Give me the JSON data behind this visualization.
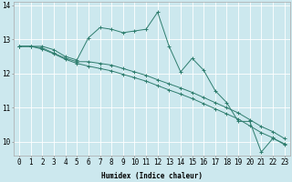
{
  "xlabel": "Humidex (Indice chaleur)",
  "bg_color": "#cce8ee",
  "grid_color": "#ffffff",
  "line_color": "#2e7d6e",
  "marker": "+",
  "xlim": [
    -0.5,
    23.5
  ],
  "ylim": [
    9.6,
    14.1
  ],
  "yticks": [
    10,
    11,
    12,
    13,
    14
  ],
  "xticks": [
    0,
    1,
    2,
    3,
    4,
    5,
    6,
    7,
    8,
    9,
    10,
    11,
    12,
    13,
    14,
    15,
    16,
    17,
    18,
    19,
    20,
    21,
    22,
    23
  ],
  "line1_x": [
    0,
    1,
    2,
    3,
    4,
    5,
    6,
    7,
    8,
    9,
    10,
    11,
    12,
    13,
    14,
    15,
    16,
    17,
    18,
    19,
    20,
    21,
    22,
    23
  ],
  "line1_y": [
    12.8,
    12.8,
    12.8,
    12.7,
    12.5,
    12.4,
    13.05,
    13.35,
    13.3,
    13.2,
    13.25,
    13.3,
    13.8,
    12.8,
    12.05,
    12.45,
    12.1,
    11.5,
    11.15,
    10.6,
    10.6,
    9.7,
    10.1,
    9.95
  ],
  "line2_x": [
    0,
    1,
    2,
    3,
    4,
    5,
    6,
    7,
    8,
    9,
    10,
    11,
    12,
    13,
    14,
    15,
    16,
    17,
    18,
    19,
    20,
    21,
    22,
    23
  ],
  "line2_y": [
    12.8,
    12.8,
    12.75,
    12.6,
    12.45,
    12.35,
    12.35,
    12.3,
    12.25,
    12.15,
    12.05,
    11.95,
    11.82,
    11.7,
    11.58,
    11.45,
    11.3,
    11.15,
    11.0,
    10.85,
    10.65,
    10.45,
    10.3,
    10.1
  ],
  "line3_x": [
    0,
    1,
    2,
    3,
    4,
    5,
    6,
    7,
    8,
    9,
    10,
    11,
    12,
    13,
    14,
    15,
    16,
    17,
    18,
    19,
    20,
    21,
    22,
    23
  ],
  "line3_y": [
    12.8,
    12.8,
    12.72,
    12.58,
    12.42,
    12.3,
    12.22,
    12.15,
    12.08,
    11.98,
    11.88,
    11.78,
    11.65,
    11.52,
    11.4,
    11.27,
    11.12,
    10.97,
    10.82,
    10.67,
    10.47,
    10.27,
    10.12,
    9.92
  ],
  "xlabel_fontsize": 5.5,
  "tick_fontsize": 5.5,
  "linewidth": 0.7,
  "markersize": 2.5,
  "markeredgewidth": 0.7
}
